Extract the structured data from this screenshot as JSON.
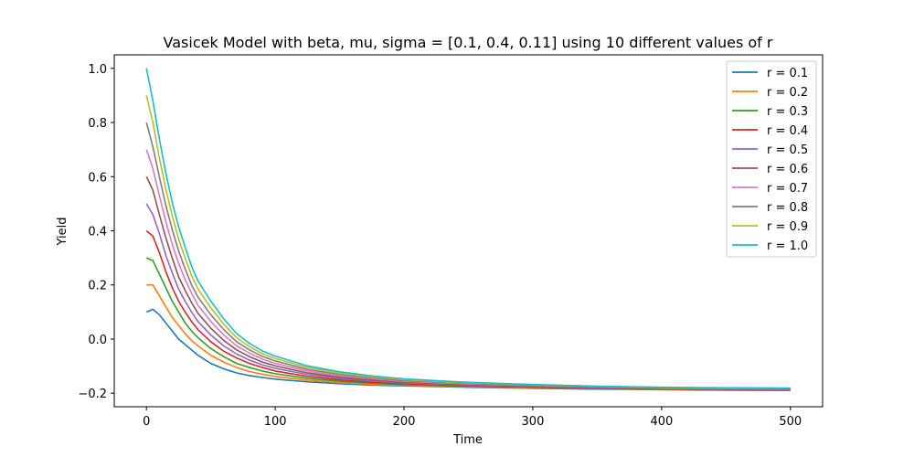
{
  "chart_data": {
    "type": "line",
    "title": "Vasicek Model with beta, mu, sigma = [0.1, 0.4, 0.11] using 10 different values of r",
    "xlabel": "Time",
    "ylabel": "Yield",
    "xlim": [
      -25,
      525
    ],
    "ylim": [
      -0.25,
      1.05
    ],
    "xticks": [
      0,
      100,
      200,
      300,
      400,
      500
    ],
    "yticks": [
      -0.2,
      0.0,
      0.2,
      0.4,
      0.6,
      0.8,
      1.0
    ],
    "ytick_labels": [
      "−0.2",
      "0.0",
      "0.2",
      "0.4",
      "0.6",
      "0.8",
      "1.0"
    ],
    "grid": false,
    "legend_position": "top-right",
    "x": [
      0,
      5,
      10,
      15,
      20,
      25,
      30,
      35,
      40,
      50,
      60,
      70,
      80,
      90,
      100,
      125,
      150,
      175,
      200,
      250,
      300,
      350,
      400,
      450,
      500
    ],
    "series": [
      {
        "name": "r = 0.1",
        "color": "#1f77b4",
        "values": [
          0.1,
          0.11,
          0.09,
          0.06,
          0.03,
          0.0,
          -0.02,
          -0.04,
          -0.06,
          -0.09,
          -0.11,
          -0.125,
          -0.135,
          -0.142,
          -0.148,
          -0.158,
          -0.165,
          -0.17,
          -0.173,
          -0.178,
          -0.182,
          -0.185,
          -0.187,
          -0.189,
          -0.19
        ]
      },
      {
        "name": "r = 0.2",
        "color": "#ff7f0e",
        "values": [
          0.2,
          0.2,
          0.16,
          0.12,
          0.08,
          0.05,
          0.02,
          -0.005,
          -0.025,
          -0.06,
          -0.085,
          -0.105,
          -0.12,
          -0.13,
          -0.138,
          -0.152,
          -0.161,
          -0.167,
          -0.171,
          -0.176,
          -0.18,
          -0.183,
          -0.186,
          -0.188,
          -0.189
        ]
      },
      {
        "name": "r = 0.3",
        "color": "#2ca02c",
        "values": [
          0.3,
          0.29,
          0.24,
          0.19,
          0.14,
          0.1,
          0.06,
          0.03,
          0.005,
          -0.035,
          -0.065,
          -0.09,
          -0.105,
          -0.118,
          -0.128,
          -0.145,
          -0.156,
          -0.163,
          -0.168,
          -0.174,
          -0.178,
          -0.182,
          -0.185,
          -0.187,
          -0.188
        ]
      },
      {
        "name": "r = 0.4",
        "color": "#d62728",
        "values": [
          0.4,
          0.38,
          0.32,
          0.25,
          0.19,
          0.14,
          0.1,
          0.065,
          0.035,
          -0.01,
          -0.045,
          -0.07,
          -0.09,
          -0.105,
          -0.118,
          -0.138,
          -0.151,
          -0.159,
          -0.165,
          -0.172,
          -0.177,
          -0.181,
          -0.184,
          -0.186,
          -0.187
        ]
      },
      {
        "name": "r = 0.5",
        "color": "#9467bd",
        "values": [
          0.5,
          0.46,
          0.39,
          0.31,
          0.245,
          0.185,
          0.14,
          0.1,
          0.065,
          0.015,
          -0.025,
          -0.055,
          -0.078,
          -0.095,
          -0.108,
          -0.131,
          -0.146,
          -0.155,
          -0.162,
          -0.17,
          -0.175,
          -0.179,
          -0.183,
          -0.185,
          -0.186
        ]
      },
      {
        "name": "r = 0.6",
        "color": "#8c564b",
        "values": [
          0.6,
          0.55,
          0.46,
          0.375,
          0.3,
          0.23,
          0.18,
          0.135,
          0.095,
          0.04,
          -0.005,
          -0.04,
          -0.065,
          -0.085,
          -0.099,
          -0.125,
          -0.141,
          -0.151,
          -0.159,
          -0.168,
          -0.174,
          -0.178,
          -0.182,
          -0.184,
          -0.185
        ]
      },
      {
        "name": "r = 0.7",
        "color": "#e377c2",
        "values": [
          0.7,
          0.63,
          0.53,
          0.435,
          0.35,
          0.28,
          0.22,
          0.17,
          0.125,
          0.065,
          0.015,
          -0.025,
          -0.052,
          -0.074,
          -0.09,
          -0.118,
          -0.136,
          -0.147,
          -0.156,
          -0.166,
          -0.172,
          -0.177,
          -0.181,
          -0.183,
          -0.184
        ]
      },
      {
        "name": "r = 0.8",
        "color": "#7f7f7f",
        "values": [
          0.8,
          0.71,
          0.6,
          0.495,
          0.405,
          0.325,
          0.26,
          0.2,
          0.155,
          0.09,
          0.035,
          -0.01,
          -0.04,
          -0.064,
          -0.081,
          -0.112,
          -0.131,
          -0.143,
          -0.153,
          -0.164,
          -0.171,
          -0.176,
          -0.18,
          -0.182,
          -0.183
        ]
      },
      {
        "name": "r = 0.9",
        "color": "#bcbd22",
        "values": [
          0.9,
          0.8,
          0.67,
          0.555,
          0.455,
          0.37,
          0.3,
          0.235,
          0.185,
          0.115,
          0.055,
          0.005,
          -0.028,
          -0.054,
          -0.072,
          -0.105,
          -0.126,
          -0.14,
          -0.15,
          -0.162,
          -0.169,
          -0.175,
          -0.179,
          -0.181,
          -0.182
        ]
      },
      {
        "name": "r = 1.0",
        "color": "#17becf",
        "values": [
          1.0,
          0.88,
          0.74,
          0.615,
          0.505,
          0.415,
          0.34,
          0.27,
          0.215,
          0.14,
          0.075,
          0.02,
          -0.016,
          -0.044,
          -0.063,
          -0.099,
          -0.121,
          -0.136,
          -0.147,
          -0.16,
          -0.168,
          -0.174,
          -0.178,
          -0.18,
          -0.181
        ]
      }
    ]
  }
}
